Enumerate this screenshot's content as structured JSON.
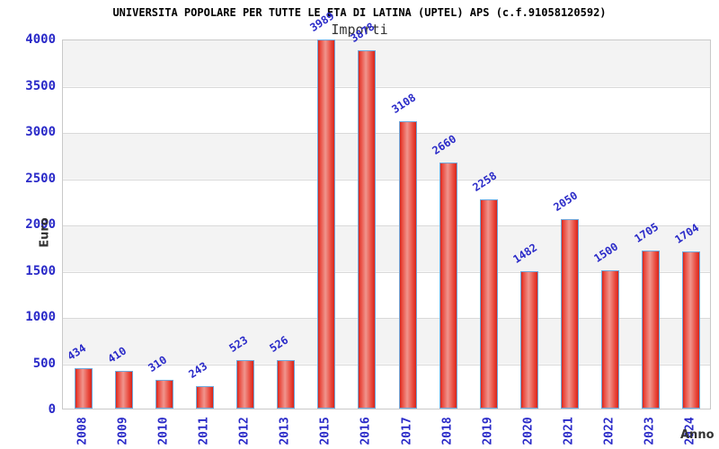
{
  "title": "UNIVERSITA POPOLARE PER TUTTE LE ETA DI LATINA (UPTEL) APS (c.f.91058120592)",
  "chart_data": {
    "type": "bar",
    "title": "Importi",
    "xlabel": "Anno",
    "ylabel": "Euro",
    "categories": [
      "2008",
      "2009",
      "2010",
      "2011",
      "2012",
      "2013",
      "2015",
      "2016",
      "2017",
      "2018",
      "2019",
      "2020",
      "2021",
      "2022",
      "2023",
      "2024"
    ],
    "values": [
      434,
      410,
      310,
      243,
      523,
      526,
      3989,
      3878,
      3108,
      2660,
      2258,
      1482,
      2050,
      1500,
      1705,
      1704
    ],
    "ylim": [
      0,
      4000
    ],
    "yticks": [
      0,
      500,
      1000,
      1500,
      2000,
      2500,
      3000,
      3500,
      4000
    ],
    "grid": true,
    "legend": "none",
    "bands_alternating": true,
    "colors": {
      "bar_fill_edge": "#d8251a",
      "bar_fill_highlight": "#f0958d",
      "bar_border": "#6fa8dc",
      "label_blue": "#2a2ac8",
      "band_gray": "#f3f3f3",
      "gridline": "#d9d9d9",
      "frame": "#c9c9c9",
      "text_dark": "#333333",
      "title_black": "#000000"
    }
  }
}
